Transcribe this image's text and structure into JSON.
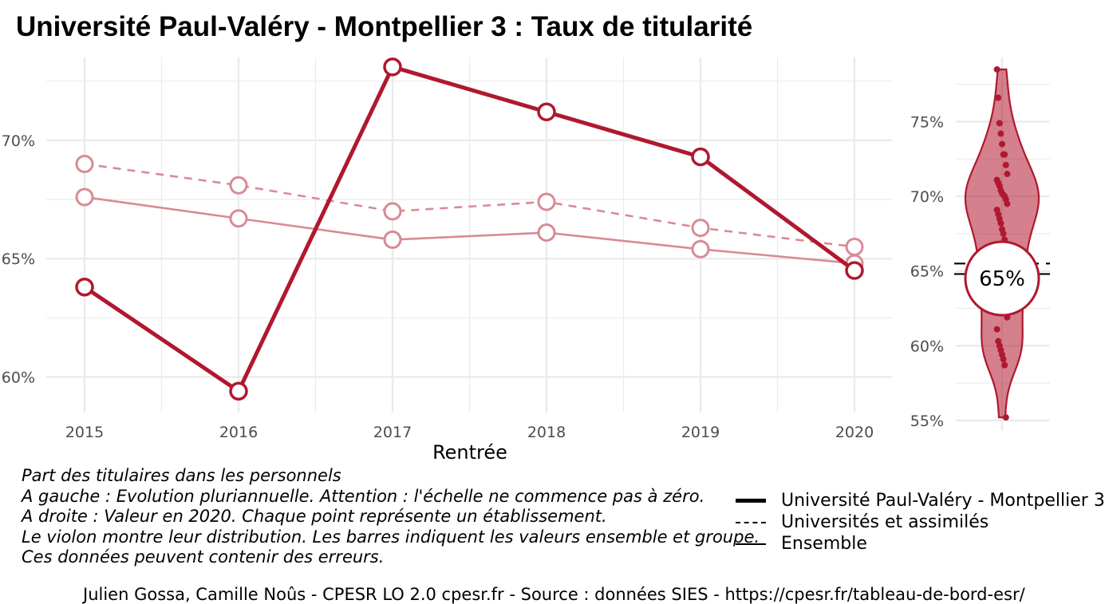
{
  "title": "Université Paul-Valéry - Montpellier 3  :  Taux de titularité",
  "colors": {
    "accent": "#b0182f",
    "accent_light": "#d98a94",
    "grid": "#ebebeb"
  },
  "chart_data": [
    {
      "type": "line",
      "xlabel": "Rentrée",
      "ylabel": "",
      "x": [
        "2015",
        "2016",
        "2017",
        "2018",
        "2019",
        "2020"
      ],
      "ylim": [
        58.5,
        73.5
      ],
      "yticks": [
        "60%",
        "65%",
        "70%"
      ],
      "ytick_values": [
        60,
        65,
        70
      ],
      "series": [
        {
          "key": "etab",
          "style": "solid-thick",
          "values": [
            63.8,
            59.4,
            73.1,
            71.2,
            69.3,
            64.5
          ]
        },
        {
          "key": "groupe",
          "style": "dashed",
          "values": [
            69.0,
            68.1,
            67.0,
            67.4,
            66.3,
            65.5
          ]
        },
        {
          "key": "ensemble",
          "style": "solid-thin",
          "values": [
            67.6,
            66.7,
            65.8,
            66.1,
            65.4,
            64.8
          ]
        }
      ]
    },
    {
      "type": "violin",
      "ylim": [
        54.3,
        79.3
      ],
      "yticks": [
        "55%",
        "60%",
        "65%",
        "70%",
        "75%"
      ],
      "ytick_values": [
        55,
        60,
        65,
        70,
        75
      ],
      "highlight_value": 64.5,
      "highlight_label": "65%",
      "reference_lines": [
        65.5,
        64.8
      ],
      "points": [
        78.5,
        76.6,
        74.9,
        74.2,
        73.5,
        72.8,
        72.8,
        72.1,
        71.5,
        71.1,
        70.9,
        70.7,
        70.4,
        70.2,
        70.1,
        70.0,
        69.8,
        69.5,
        69.1,
        68.8,
        68.5,
        68.2,
        67.8,
        67.5,
        67.1,
        66.5,
        66.1,
        65.5,
        65.1,
        64.7,
        64.4,
        63.9,
        63.3,
        62.8,
        62.3,
        61.9,
        61.1,
        60.3,
        60.0,
        59.7,
        59.4,
        59.1,
        58.7,
        55.2
      ]
    }
  ],
  "caption": [
    "Part des titulaires dans les personnels",
    "A gauche : Evolution pluriannuelle. Attention : l'échelle ne commence pas à zéro.",
    "A droite : Valeur en 2020. Chaque point représente un établissement.",
    "Le violon montre leur distribution. Les barres indiquent les valeurs ensemble et groupe.",
    "Ces données peuvent contenir des erreurs."
  ],
  "legend": [
    {
      "label": "Université Paul-Valéry - Montpellier 3",
      "style": "solid-thick"
    },
    {
      "label": "Universités et assimilés",
      "style": "dashed"
    },
    {
      "label": "Ensemble",
      "style": "solid-thin"
    }
  ],
  "footer": "Julien Gossa, Camille Noûs - CPESR LO 2.0 cpesr.fr - Source : données SIES - https://cpesr.fr/tableau-de-bord-esr/"
}
